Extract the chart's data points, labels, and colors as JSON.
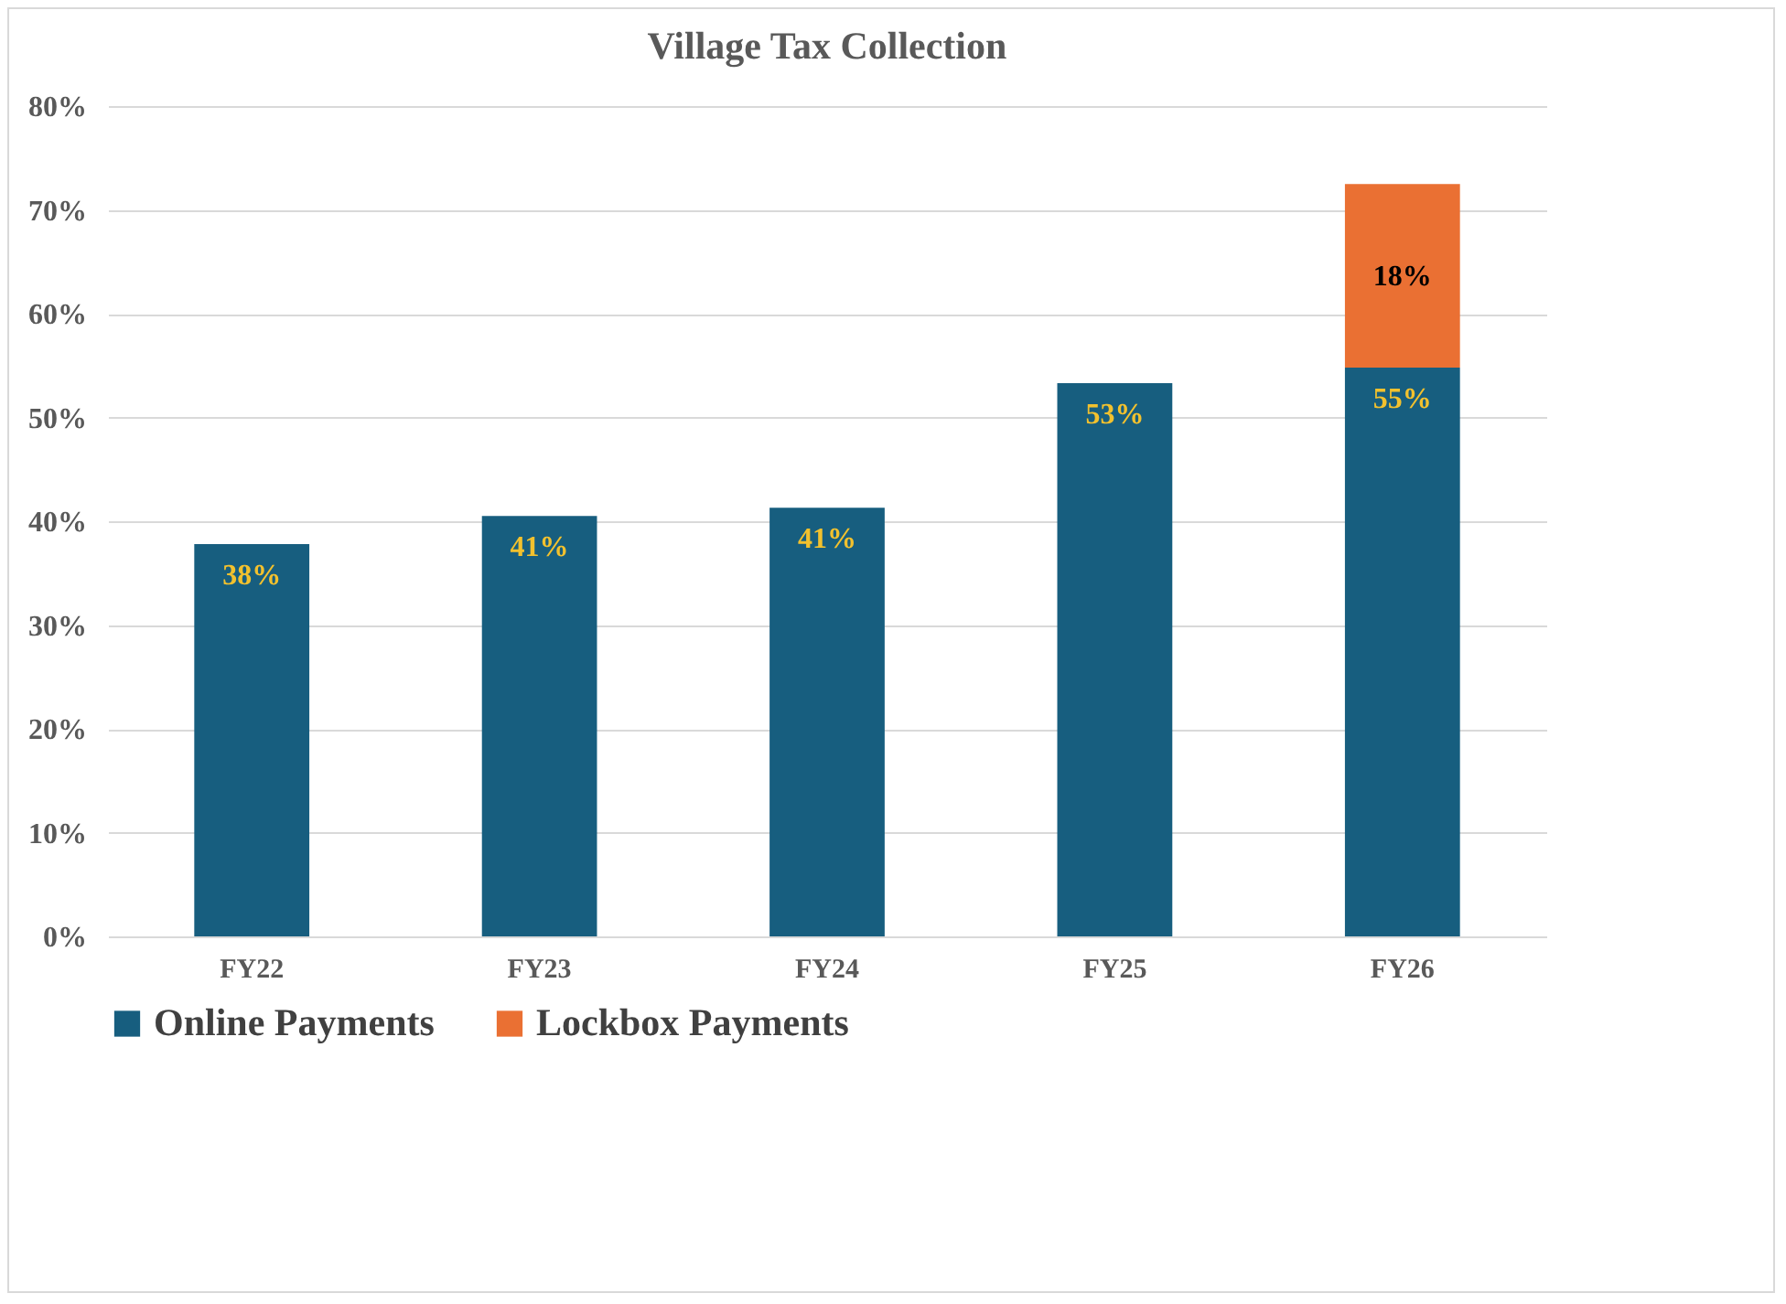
{
  "chart_data": {
    "type": "bar",
    "title": "Village Tax Collection",
    "categories": [
      "FY22",
      "FY23",
      "FY24",
      "FY25",
      "FY26"
    ],
    "stacked": true,
    "series": [
      {
        "name": "Online Payments",
        "color": "#175e7f",
        "values": [
          37.8,
          40.5,
          41.3,
          53.3,
          54.8
        ],
        "value_labels": [
          "38%",
          "41%",
          "41%",
          "53%",
          "55%"
        ]
      },
      {
        "name": "Lockbox Payments",
        "color": "#ea7033",
        "values": [
          null,
          null,
          null,
          null,
          17.7
        ],
        "value_labels": [
          null,
          null,
          null,
          null,
          "18%"
        ]
      }
    ],
    "ylim": [
      0,
      80
    ],
    "yticks": [
      {
        "value": 0,
        "label": "0%"
      },
      {
        "value": 10,
        "label": "10%"
      },
      {
        "value": 20,
        "label": "20%"
      },
      {
        "value": 30,
        "label": "30%"
      },
      {
        "value": 40,
        "label": "40%"
      },
      {
        "value": 50,
        "label": "50%"
      },
      {
        "value": 60,
        "label": "60%"
      },
      {
        "value": 70,
        "label": "70%"
      },
      {
        "value": 80,
        "label": "80%"
      }
    ],
    "grid": "y",
    "legend": "bottom"
  }
}
